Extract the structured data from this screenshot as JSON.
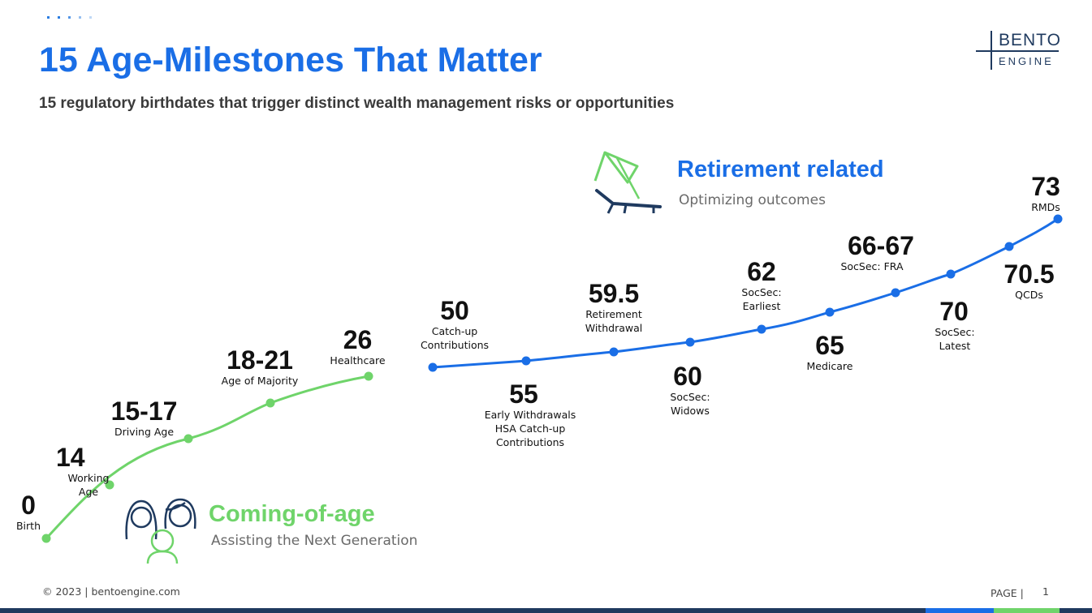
{
  "header": {
    "title": "15 Age-Milestones That Matter",
    "subtitle": "15 regulatory birthdates that trigger distinct wealth management risks or opportunities"
  },
  "logo": {
    "line1": "BENTO",
    "line2": "ENGINE"
  },
  "colors": {
    "blue": "#1a6ee6",
    "green": "#6fd46a",
    "navy": "#1f3a5f",
    "title": "#1a6ee6"
  },
  "sections": {
    "retirement": {
      "title": "Retirement related",
      "subtitle": "Optimizing outcomes",
      "icon": "beach-lounger-icon"
    },
    "coming_of_age": {
      "title": "Coming-of-age",
      "subtitle": "Assisting the Next Generation",
      "icon": "family-icon"
    }
  },
  "milestones": [
    {
      "age": "0",
      "label": "Birth",
      "group": "coming_of_age"
    },
    {
      "age": "14",
      "label": "Working\nAge",
      "group": "coming_of_age"
    },
    {
      "age": "15-17",
      "label": "Driving Age",
      "group": "coming_of_age"
    },
    {
      "age": "18-21",
      "label": "Age of Majority",
      "group": "coming_of_age"
    },
    {
      "age": "26",
      "label": "Healthcare",
      "group": "coming_of_age"
    },
    {
      "age": "50",
      "label": "Catch-up\nContributions",
      "group": "retirement"
    },
    {
      "age": "55",
      "label": "Early Withdrawals\nHSA Catch-up\nContributions",
      "group": "retirement"
    },
    {
      "age": "59.5",
      "label": "Retirement\nWithdrawal",
      "group": "retirement"
    },
    {
      "age": "60",
      "label": "SocSec:\nWidows",
      "group": "retirement"
    },
    {
      "age": "62",
      "label": "SocSec:\nEarliest",
      "group": "retirement"
    },
    {
      "age": "65",
      "label": "Medicare",
      "group": "retirement"
    },
    {
      "age": "66-67",
      "label": "SocSec: FRA",
      "group": "retirement"
    },
    {
      "age": "70",
      "label": "SocSec:\nLatest",
      "group": "retirement"
    },
    {
      "age": "70.5",
      "label": "QCDs",
      "group": "retirement"
    },
    {
      "age": "73",
      "label": "RMDs",
      "group": "retirement"
    }
  ],
  "footer": {
    "copyright": "© 2023  |  bentoengine.com",
    "page_label": "PAGE |",
    "page_number": "1"
  }
}
